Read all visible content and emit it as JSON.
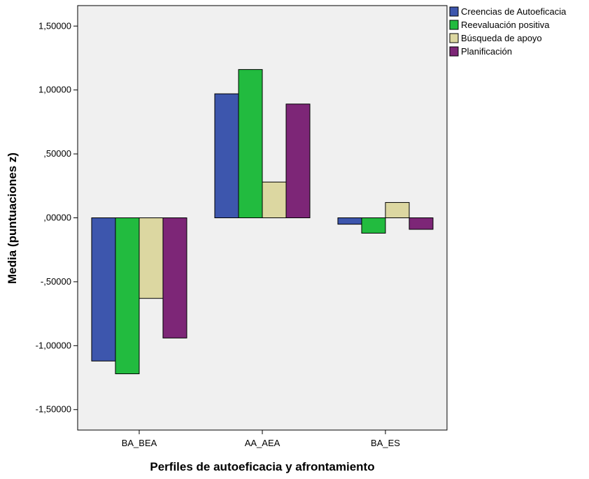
{
  "chart_data": {
    "type": "bar",
    "title": "",
    "xlabel": "Perfiles de autoeficacia y afrontamiento",
    "ylabel": "Media (puntuaciones z)",
    "categories": [
      "BA_BEA",
      "AA_AEA",
      "BA_ES"
    ],
    "series": [
      {
        "name": "Creencias de Autoeficacia",
        "color": "#3d56ad",
        "values": [
          -1.12,
          0.97,
          -0.05
        ]
      },
      {
        "name": "Reevaluación positiva",
        "color": "#22bb3f",
        "values": [
          -1.22,
          1.16,
          -0.12
        ]
      },
      {
        "name": "Búsqueda de apoyo",
        "color": "#dcd7a1",
        "values": [
          -0.63,
          0.28,
          0.12
        ]
      },
      {
        "name": "Planificación",
        "color": "#7d2677",
        "values": [
          -0.94,
          0.89,
          -0.09
        ]
      }
    ],
    "ylim": [
      -1.66,
      1.66
    ],
    "yticks": [
      -1.5,
      -1.0,
      -0.5,
      0.0,
      0.5,
      1.0,
      1.5
    ],
    "ytick_labels": [
      "-1,50000",
      "-1,00000",
      "-,50000",
      ",00000",
      ",50000",
      "1,00000",
      "1,50000"
    ],
    "legend_position": "top-right",
    "plot_background": "#f0f0f0",
    "grid": false
  }
}
